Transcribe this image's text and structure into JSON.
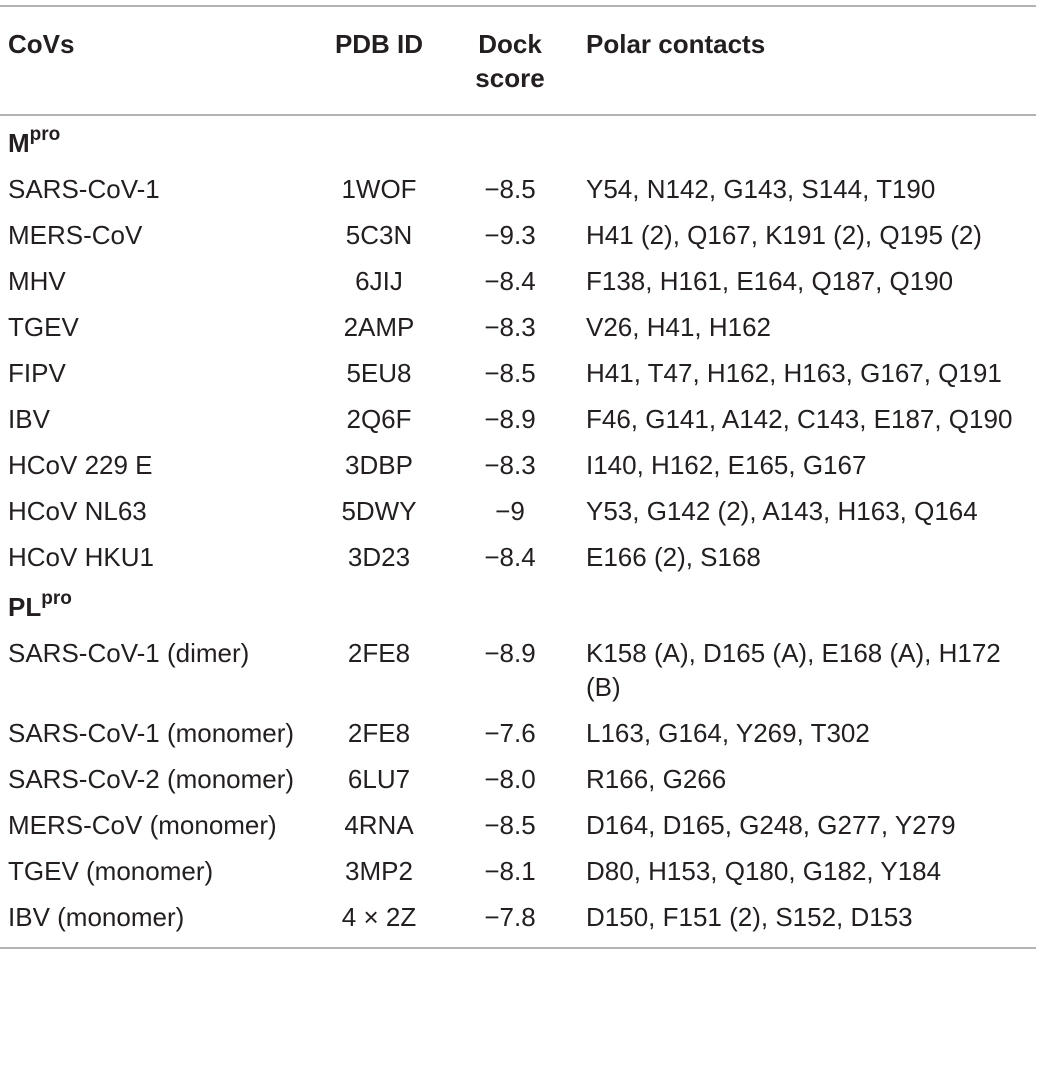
{
  "header": {
    "covs": "CoVs",
    "pdb_id": "PDB ID",
    "dock_score": "Dock score",
    "polar_contacts": "Polar contacts"
  },
  "sections": [
    {
      "title_main": "M",
      "title_sup": "pro",
      "rows": [
        {
          "cov": "SARS-CoV-1",
          "pdb": "1WOF",
          "score": "−8.5",
          "contacts": "Y54, N142, G143, S144, T190"
        },
        {
          "cov": "MERS-CoV",
          "pdb": "5C3N",
          "score": "−9.3",
          "contacts": "H41 (2), Q167, K191 (2), Q195 (2)"
        },
        {
          "cov": "MHV",
          "pdb": "6JIJ",
          "score": "−8.4",
          "contacts": "F138, H161, E164, Q187, Q190"
        },
        {
          "cov": "TGEV",
          "pdb": "2AMP",
          "score": "−8.3",
          "contacts": "V26, H41, H162"
        },
        {
          "cov": "FIPV",
          "pdb": "5EU8",
          "score": "−8.5",
          "contacts": "H41, T47, H162, H163, G167, Q191"
        },
        {
          "cov": "IBV",
          "pdb": "2Q6F",
          "score": "−8.9",
          "contacts": "F46, G141, A142, C143, E187, Q190"
        },
        {
          "cov": "HCoV 229 E",
          "pdb": "3DBP",
          "score": "−8.3",
          "contacts": "I140, H162, E165, G167"
        },
        {
          "cov": "HCoV NL63",
          "pdb": "5DWY",
          "score": "−9",
          "contacts": "Y53, G142 (2), A143, H163, Q164"
        },
        {
          "cov": "HCoV HKU1",
          "pdb": "3D23",
          "score": "−8.4",
          "contacts": "E166 (2), S168"
        }
      ]
    },
    {
      "title_main": "PL",
      "title_sup": "pro",
      "rows": [
        {
          "cov": "SARS-CoV-1 (dimer)",
          "pdb": "2FE8",
          "score": "−8.9",
          "contacts": "K158 (A), D165 (A), E168 (A), H172 (B)"
        },
        {
          "cov": "SARS-CoV-1 (monomer)",
          "pdb": "2FE8",
          "score": "−7.6",
          "contacts": "L163, G164, Y269, T302"
        },
        {
          "cov": "SARS-CoV-2 (monomer)",
          "pdb": "6LU7",
          "score": "−8.0",
          "contacts": "R166, G266"
        },
        {
          "cov": "MERS-CoV (monomer)",
          "pdb": "4RNA",
          "score": "−8.5",
          "contacts": "D164, D165, G248, G277, Y279"
        },
        {
          "cov": "TGEV (monomer)",
          "pdb": "3MP2",
          "score": "−8.1",
          "contacts": "D80, H153, Q180, G182, Y184"
        },
        {
          "cov": "IBV (monomer)",
          "pdb": "4 × 2Z",
          "score": "−7.8",
          "contacts": "D150, F151 (2), S152, D153"
        }
      ]
    }
  ]
}
